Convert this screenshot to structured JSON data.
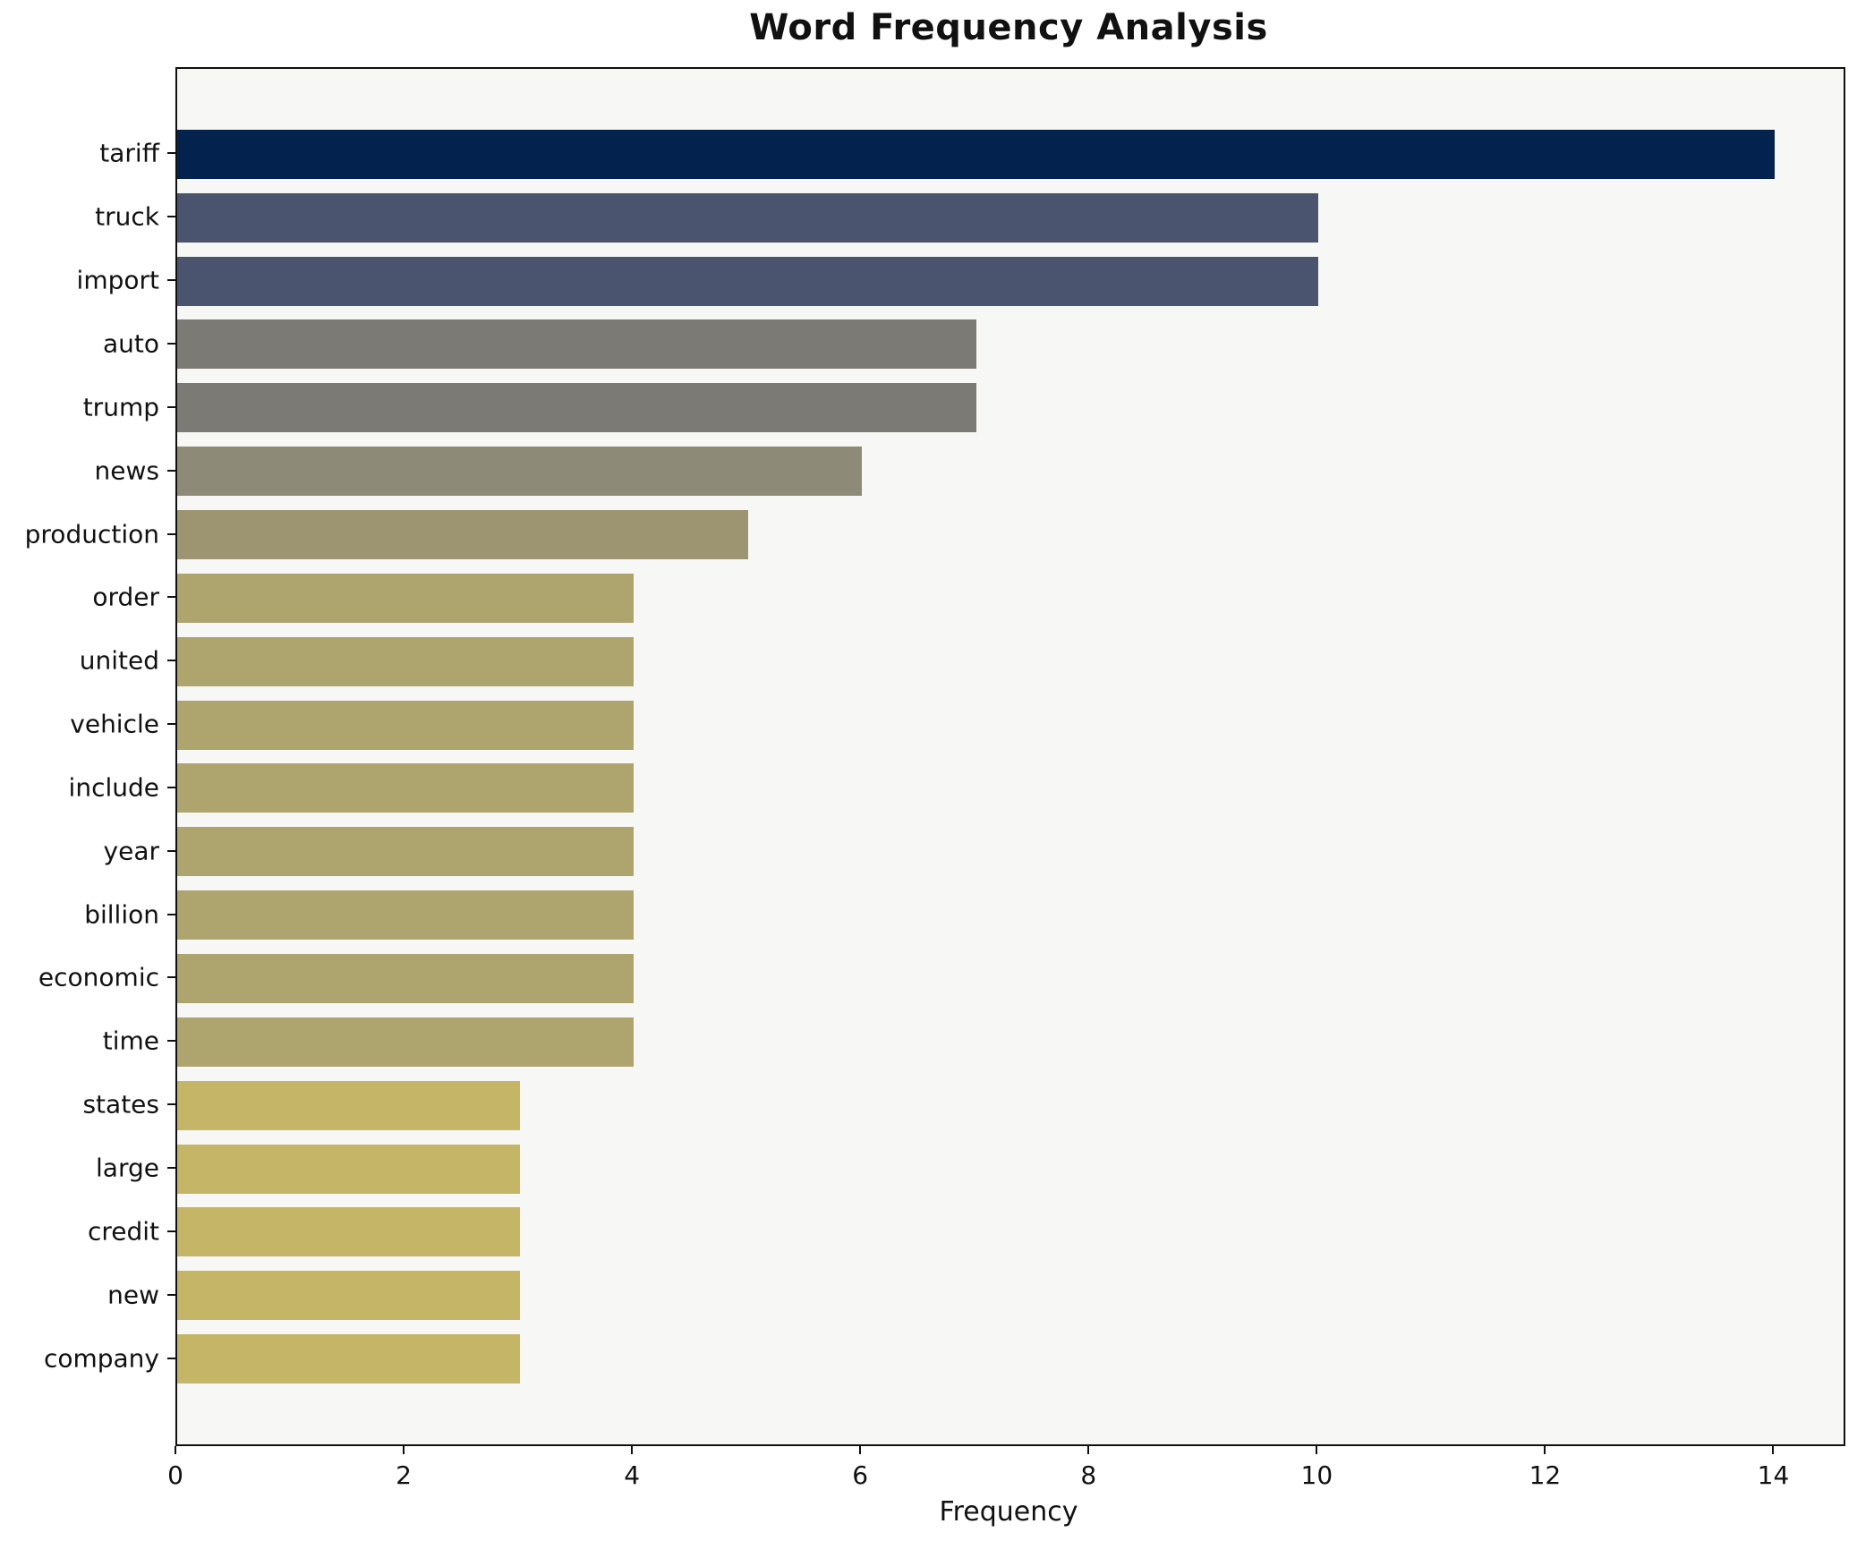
{
  "chart_data": {
    "type": "bar",
    "orientation": "horizontal",
    "title": "Word Frequency Analysis",
    "xlabel": "Frequency",
    "ylabel": "",
    "categories": [
      "tariff",
      "truck",
      "import",
      "auto",
      "trump",
      "news",
      "production",
      "order",
      "united",
      "vehicle",
      "include",
      "year",
      "billion",
      "economic",
      "time",
      "states",
      "large",
      "credit",
      "new",
      "company"
    ],
    "values": [
      14,
      10,
      10,
      7,
      7,
      6,
      5,
      4,
      4,
      4,
      4,
      4,
      4,
      4,
      4,
      3,
      3,
      3,
      3,
      3
    ],
    "bar_colors": [
      "#03234e",
      "#4b546e",
      "#4b546e",
      "#7b7a75",
      "#7b7a75",
      "#8e8a78",
      "#9d9572",
      "#ada46e",
      "#ada46e",
      "#ada46e",
      "#ada46e",
      "#ada46e",
      "#ada46e",
      "#ada46e",
      "#ada46e",
      "#c5b567",
      "#c5b567",
      "#c5b567",
      "#c5b567",
      "#c5b567"
    ],
    "xticks": [
      0,
      2,
      4,
      6,
      8,
      10,
      12,
      14
    ],
    "xlim": [
      0,
      14.6
    ],
    "grid": false,
    "legend": "none",
    "plot_bg": "#f7f7f5",
    "spine_color": "#101010",
    "text_color": "#111111"
  }
}
